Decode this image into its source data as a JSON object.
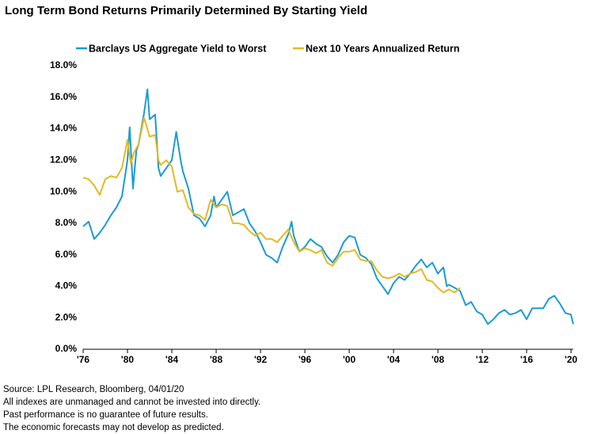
{
  "chart_data": {
    "type": "line",
    "title": "Long Term Bond Returns Primarily Determined By Starting Yield",
    "notes": [
      "Source: LPL Research, Bloomberg, 04/01/20",
      "All indexes are unmanaged and cannot be invested into directly.",
      "Past performance is no guarantee of future results.",
      "The economic forecasts may not develop as predicted."
    ],
    "xlim": [
      1976,
      2020.2
    ],
    "xticks": [
      {
        "value": 1976,
        "label": "'76"
      },
      {
        "value": 1980,
        "label": "'80"
      },
      {
        "value": 1984,
        "label": "'84"
      },
      {
        "value": 1988,
        "label": "'88"
      },
      {
        "value": 1992,
        "label": "'92"
      },
      {
        "value": 1996,
        "label": "'96"
      },
      {
        "value": 2000,
        "label": "'00"
      },
      {
        "value": 2004,
        "label": "'04"
      },
      {
        "value": 2008,
        "label": "'08"
      },
      {
        "value": 2012,
        "label": "'12"
      },
      {
        "value": 2016,
        "label": "'16"
      },
      {
        "value": 2020,
        "label": "'20"
      }
    ],
    "ylim": [
      0,
      18
    ],
    "yticks": [
      {
        "value": 0,
        "label": "0.0%"
      },
      {
        "value": 2,
        "label": "2.0%"
      },
      {
        "value": 4,
        "label": "4.0%"
      },
      {
        "value": 6,
        "label": "6.0%"
      },
      {
        "value": 8,
        "label": "8.0%"
      },
      {
        "value": 10,
        "label": "10.0%"
      },
      {
        "value": 12,
        "label": "12.0%"
      },
      {
        "value": 14,
        "label": "14.0%"
      },
      {
        "value": 16,
        "label": "16.0%"
      },
      {
        "value": 18,
        "label": "18.0%"
      }
    ],
    "grid": false,
    "series": [
      {
        "name": "Barclays US Aggregate Yield to Worst",
        "color": "#1a9bd7",
        "x": [
          1976,
          1976.5,
          1977,
          1977.5,
          1978,
          1978.5,
          1979,
          1979.5,
          1980,
          1980.2,
          1980.5,
          1980.8,
          1981,
          1981.5,
          1981.8,
          1982,
          1982.5,
          1982.8,
          1983,
          1983.5,
          1984,
          1984.4,
          1984.8,
          1985,
          1985.5,
          1986,
          1986.5,
          1987,
          1987.5,
          1987.8,
          1988,
          1988.5,
          1989,
          1989.5,
          1990,
          1990.5,
          1991,
          1991.5,
          1992,
          1992.5,
          1993,
          1993.5,
          1994,
          1994.5,
          1994.8,
          1995,
          1995.5,
          1996,
          1996.5,
          1997,
          1997.5,
          1998,
          1998.5,
          1999,
          1999.5,
          2000,
          2000.5,
          2001,
          2001.5,
          2002,
          2002.5,
          2003,
          2003.5,
          2004,
          2004.5,
          2005,
          2005.5,
          2006,
          2006.5,
          2007,
          2007.5,
          2008,
          2008.5,
          2008.8,
          2009,
          2009.5,
          2010,
          2010.5,
          2011,
          2011.5,
          2012,
          2012.5,
          2013,
          2013.5,
          2014,
          2014.5,
          2015,
          2015.5,
          2016,
          2016.5,
          2017,
          2017.5,
          2018,
          2018.5,
          2019,
          2019.5,
          2020,
          2020.2
        ],
        "values": [
          7.8,
          8.1,
          7.0,
          7.4,
          7.9,
          8.5,
          9.0,
          9.7,
          12.0,
          14.1,
          10.2,
          12.6,
          13.0,
          15.0,
          16.5,
          14.6,
          14.9,
          11.5,
          11.0,
          11.5,
          12.0,
          13.8,
          12.0,
          11.3,
          10.2,
          8.5,
          8.3,
          7.8,
          8.5,
          9.7,
          9.0,
          9.5,
          10.0,
          8.5,
          8.7,
          8.9,
          8.0,
          7.5,
          6.8,
          6.0,
          5.8,
          5.5,
          6.5,
          7.3,
          8.1,
          7.2,
          6.2,
          6.5,
          7.0,
          6.7,
          6.5,
          5.9,
          5.5,
          6.0,
          6.8,
          7.2,
          7.1,
          6.0,
          5.8,
          5.4,
          4.5,
          4.0,
          3.5,
          4.2,
          4.6,
          4.4,
          4.8,
          5.3,
          5.7,
          5.2,
          5.5,
          4.8,
          5.2,
          4.0,
          4.1,
          3.9,
          3.7,
          2.8,
          3.0,
          2.4,
          2.2,
          1.6,
          1.9,
          2.3,
          2.5,
          2.2,
          2.3,
          2.5,
          1.9,
          2.6,
          2.6,
          2.6,
          3.2,
          3.4,
          2.9,
          2.3,
          2.2,
          1.6
        ]
      },
      {
        "name": "Next 10 Years Annualized Return",
        "color": "#e6b822",
        "x": [
          1976,
          1976.5,
          1977,
          1977.5,
          1978,
          1978.5,
          1979,
          1979.5,
          1980,
          1980.3,
          1980.6,
          1981,
          1981.5,
          1982,
          1982.5,
          1982.8,
          1983,
          1983.5,
          1984,
          1984.5,
          1985,
          1985.5,
          1986,
          1986.5,
          1987,
          1987.5,
          1988,
          1988.5,
          1989,
          1989.5,
          1990,
          1990.5,
          1991,
          1991.5,
          1992,
          1992.5,
          1993,
          1993.5,
          1994,
          1994.5,
          1995,
          1995.5,
          1996,
          1996.5,
          1997,
          1997.5,
          1998,
          1998.5,
          1999,
          1999.5,
          2000,
          2000.5,
          2001,
          2001.5,
          2002,
          2002.5,
          2003,
          2003.5,
          2004,
          2004.5,
          2005,
          2005.5,
          2006,
          2006.5,
          2007,
          2007.5,
          2008,
          2008.5,
          2009,
          2009.5,
          2010
        ],
        "values": [
          10.9,
          10.8,
          10.4,
          9.8,
          10.8,
          11.0,
          10.9,
          11.5,
          13.3,
          11.8,
          12.5,
          13.0,
          14.7,
          13.5,
          13.6,
          12.0,
          11.7,
          12.0,
          11.6,
          10.0,
          10.1,
          9.0,
          8.6,
          8.5,
          8.2,
          9.5,
          9.0,
          9.2,
          9.1,
          8.0,
          8.0,
          7.9,
          7.5,
          7.2,
          7.4,
          7.0,
          7.0,
          6.8,
          7.2,
          7.6,
          6.8,
          6.2,
          6.4,
          6.3,
          6.1,
          6.3,
          5.5,
          5.3,
          5.8,
          6.2,
          6.2,
          6.3,
          5.7,
          5.6,
          5.6,
          5.0,
          4.6,
          4.5,
          4.6,
          4.8,
          4.6,
          4.8,
          4.9,
          5.1,
          4.4,
          4.3,
          3.9,
          3.6,
          3.8,
          3.6,
          3.9
        ]
      }
    ]
  }
}
